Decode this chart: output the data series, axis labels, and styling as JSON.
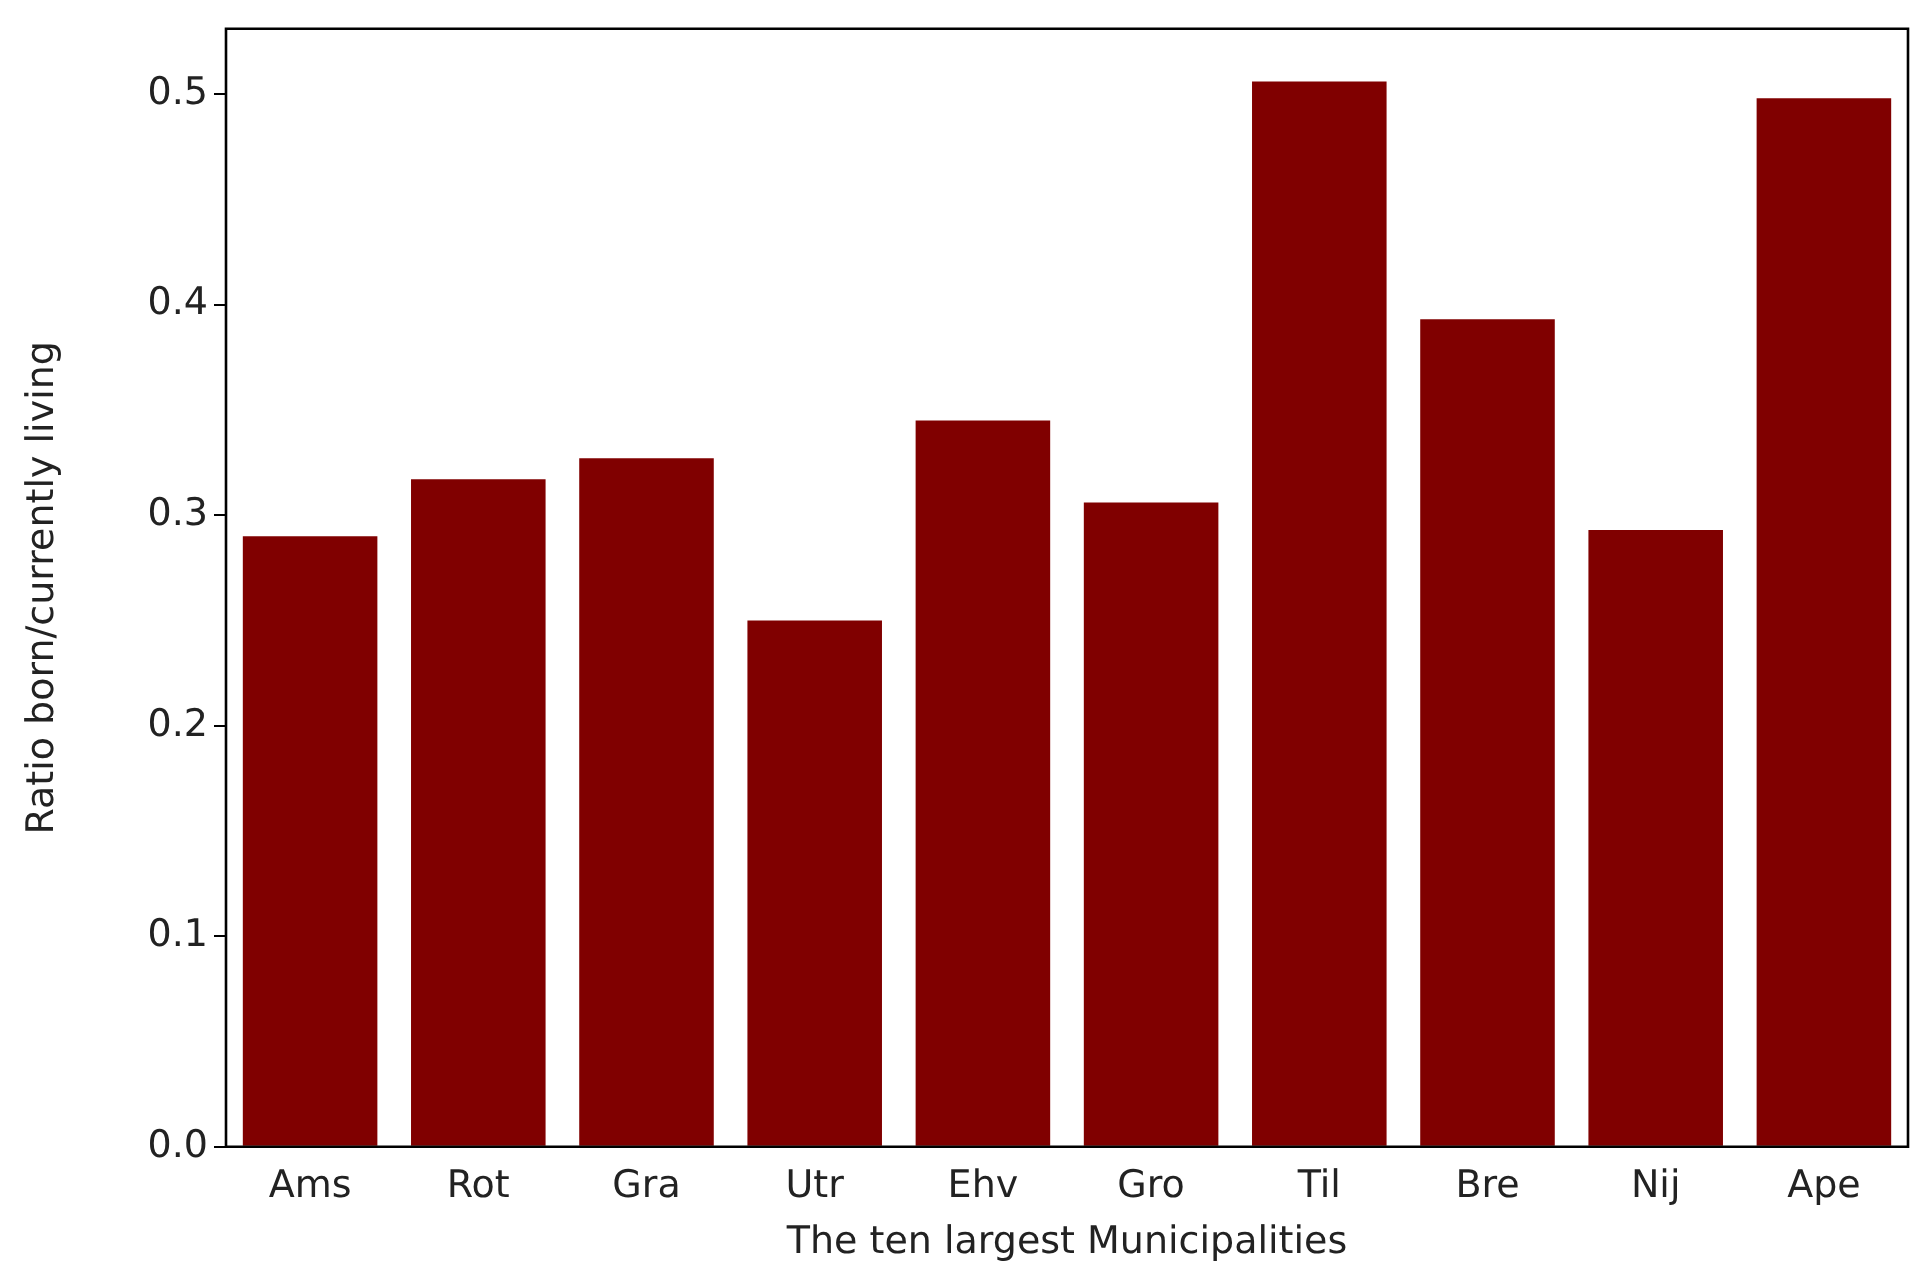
{
  "chart_data": {
    "type": "bar",
    "xlabel": "The ten largest Municipalities",
    "ylabel": "Ratio born/currently living",
    "categories": [
      "Ams",
      "Rot",
      "Gra",
      "Utr",
      "Ehv",
      "Gro",
      "Til",
      "Bre",
      "Nij",
      "Ape"
    ],
    "values": [
      0.29,
      0.317,
      0.327,
      0.25,
      0.345,
      0.306,
      0.506,
      0.393,
      0.293,
      0.498
    ],
    "color": "#800000",
    "ylim": [
      0,
      0.531
    ],
    "yticks": [
      {
        "value": 0,
        "label": "0.0"
      },
      0.1,
      0.2,
      0.3,
      0.4,
      0.5
    ],
    "grid": false,
    "legend": false
  }
}
